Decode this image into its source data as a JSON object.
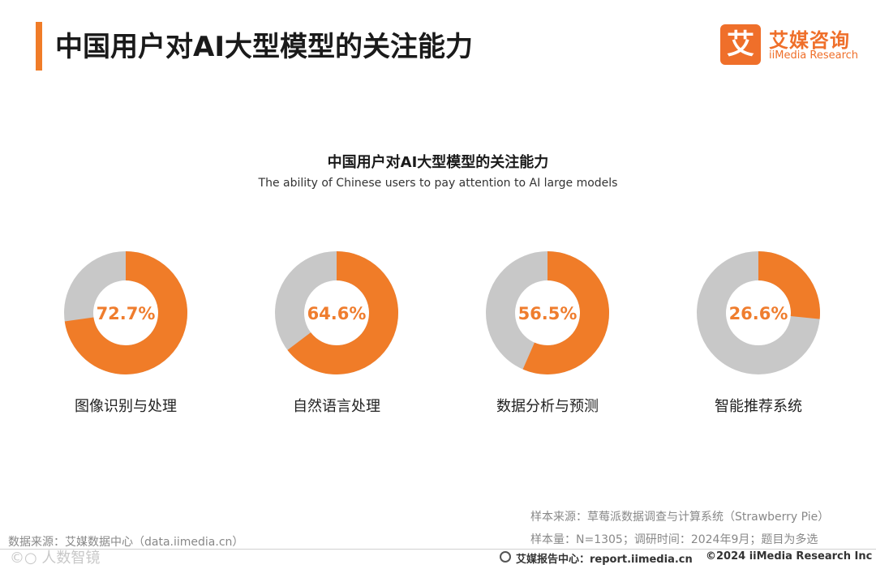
{
  "header": {
    "title": "中国用户对AI大型模型的关注能力",
    "logo_mark": "艾",
    "logo_cn": "艾媒咨询",
    "logo_en": "iiMedia Research"
  },
  "colors": {
    "accent": "#f07c28",
    "remainder": "#c8c8c8",
    "value_text": "#ef7d2e"
  },
  "chart_data": {
    "type": "donut",
    "title": "中国用户对AI大型模型的关注能力",
    "subtitle": "The ability of Chinese users to pay attention to AI large models",
    "unit": "%",
    "categories": [
      "图像识别与处理",
      "自然语言处理",
      "数据分析与预测",
      "智能推荐系统"
    ],
    "values": [
      72.7,
      64.6,
      56.5,
      26.6
    ],
    "value_labels": [
      "72.7%",
      "64.6%",
      "56.5%",
      "26.6%"
    ]
  },
  "footnotes": {
    "sample_source": "样本来源：草莓派数据调查与计算系统（Strawberry Pie）",
    "sample_size": "样本量：N=1305；调研时间：2024年9月；题目为多选",
    "data_source": "数据来源：艾媒数据中心（data.iimedia.cn）",
    "watermark": "©○ 人数智镜",
    "report_center": "艾媒报告中心：report.iimedia.cn",
    "copyright": "©2024  iiMedia Research  Inc"
  }
}
